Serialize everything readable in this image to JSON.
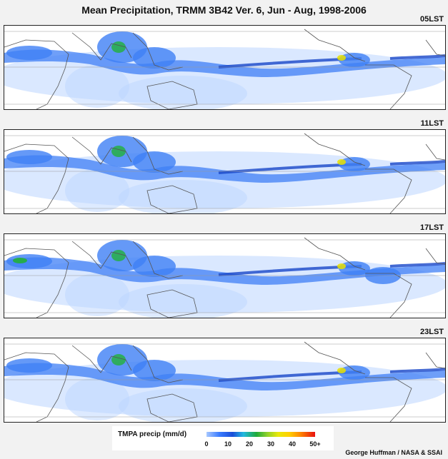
{
  "title": "Mean Precipitation, TRMM 3B42 Ver. 6, Jun - Aug, 1998-2006",
  "panels": [
    {
      "label": "05LST"
    },
    {
      "label": "11LST"
    },
    {
      "label": "17LST"
    },
    {
      "label": "23LST"
    }
  ],
  "legend": {
    "title": "TMPA precip (mm/d)",
    "ticks": [
      "0",
      "10",
      "20",
      "30",
      "40",
      "50+"
    ],
    "tick_values": [
      0,
      10,
      20,
      30,
      40,
      50
    ]
  },
  "credit": "George Huffman / NASA & SSAI",
  "colors": {
    "light": "#bcd6ff",
    "medium": "#3f7ff5",
    "dark": "#1846c8",
    "green": "#22b03a",
    "yellow": "#e8e000",
    "coast": "#555555",
    "grid": "#9a9a9a"
  }
}
